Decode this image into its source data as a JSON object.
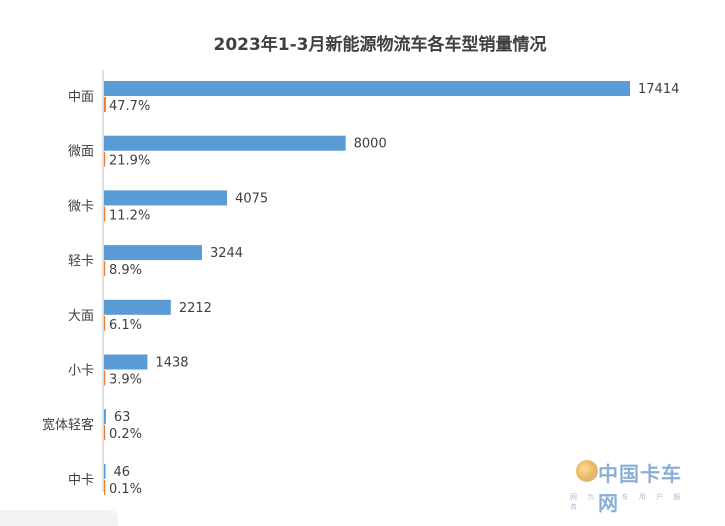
{
  "chart_data": {
    "type": "bar",
    "orientation": "horizontal",
    "title": "2023年1-3月新能源物流车各车型销量情况",
    "categories": [
      "中面",
      "微面",
      "微卡",
      "轻卡",
      "大面",
      "小卡",
      "宽体轻客",
      "中卡"
    ],
    "series": [
      {
        "values": [
          17414,
          8000,
          4075,
          3244,
          2212,
          1438,
          63,
          46
        ]
      },
      {
        "values": [
          47.7,
          21.9,
          11.2,
          8.9,
          6.1,
          3.9,
          0.2,
          0.1
        ]
      }
    ],
    "value_labels": [
      "17414",
      "8000",
      "4075",
      "3244",
      "2212",
      "1438",
      "63",
      "46"
    ],
    "share_labels": [
      "47.7%",
      "21.9%",
      "11.2%",
      "8.9%",
      "6.1%",
      "3.9%",
      "0.2%",
      "0.1%"
    ],
    "colors": {
      "sales_bar": "#5b9bd5",
      "share_bar": "#ed7d31",
      "axis": "#bfbfbf",
      "label_text": "#404040",
      "title_text": "#404040"
    },
    "grid": false,
    "legend": "none"
  },
  "watermark": {
    "text": "中国卡车网",
    "subtext": "网 为 卡 车 用 户 服 务"
  }
}
